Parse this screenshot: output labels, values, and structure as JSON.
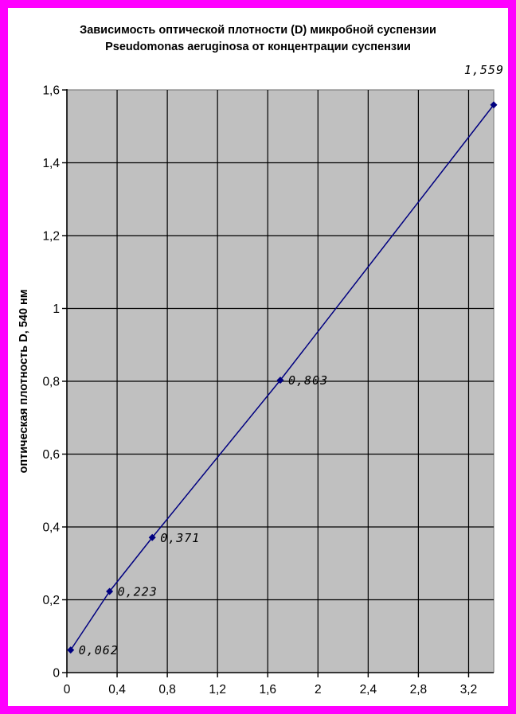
{
  "chart_data": {
    "type": "line",
    "title": "Зависимость оптической плотности (D) микробной суспензии Pseudomonas aeruginosa от концентрации суспензии",
    "title_lines": [
      "Зависимость оптической плотности (D) микробной суспензии",
      "Pseudomonas aeruginosa от концентрации суспензии"
    ],
    "xlabel": "",
    "ylabel": "оптическая плотность D, 540 нм",
    "xlim": [
      0,
      3.4
    ],
    "ylim": [
      0,
      1.6
    ],
    "x_tick_values": [
      0,
      0.4,
      0.8,
      1.2,
      1.6,
      2,
      2.4,
      2.8,
      3.2
    ],
    "x_tick_labels": [
      "0",
      "0,4",
      "0,8",
      "1,2",
      "1,6",
      "2",
      "2,4",
      "2,8",
      "3,2"
    ],
    "y_tick_values": [
      0,
      0.2,
      0.4,
      0.6,
      0.8,
      1,
      1.2,
      1.4,
      1.6
    ],
    "y_tick_labels": [
      "0",
      "0,2",
      "0,4",
      "0,6",
      "0,8",
      "1",
      "1,2",
      "1,4",
      "1,6"
    ],
    "grid": true,
    "legend": "none",
    "series": [
      {
        "name": "optical-density-series",
        "x": [
          0.03,
          0.34,
          0.68,
          1.7,
          3.4
        ],
        "y": [
          0.062,
          0.223,
          0.371,
          0.803,
          1.559
        ],
        "point_labels": [
          "0,062",
          "0,223",
          "0,371",
          "0,803",
          "1,559"
        ],
        "label_placement": [
          "right",
          "right",
          "right",
          "right",
          "outside-top-right"
        ],
        "color": "#000080",
        "marker": "diamond"
      }
    ],
    "colors": {
      "plot_bg": "#c0c0c0",
      "grid": "#000000",
      "axis": "#000000",
      "plot_border": "#909090",
      "frame_border": "#ff00ff",
      "text": "#000000"
    }
  }
}
